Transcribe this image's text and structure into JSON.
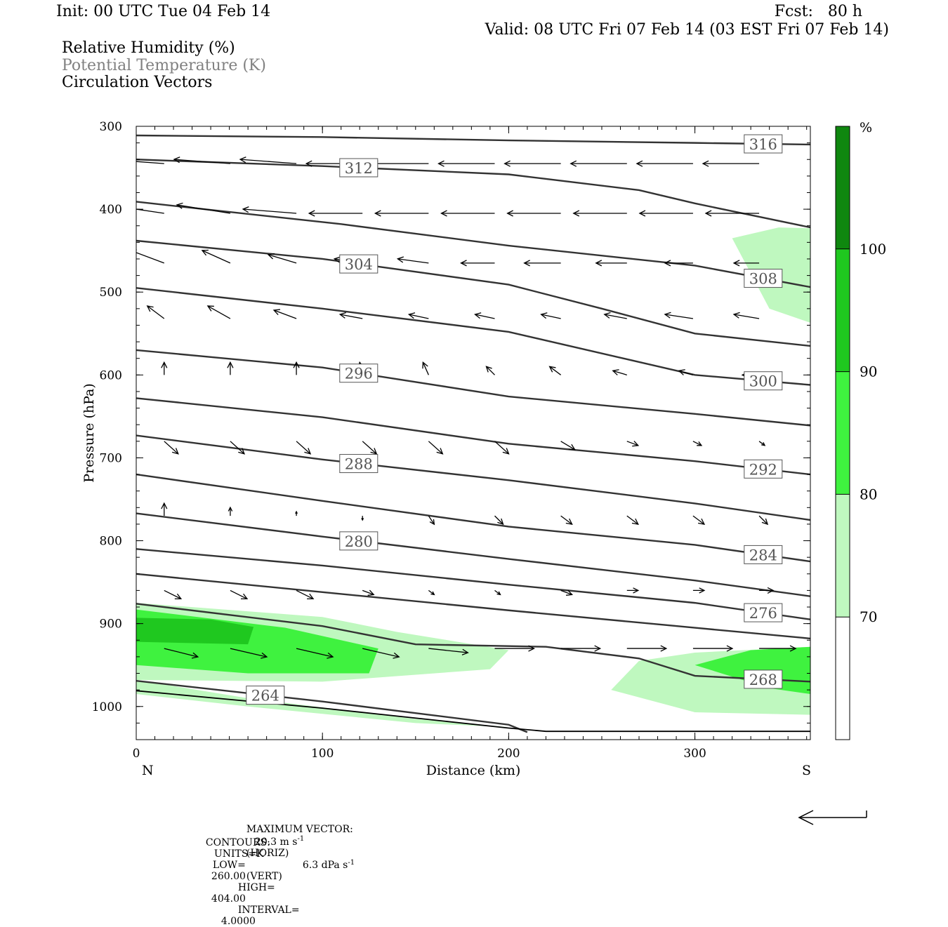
{
  "header": {
    "init": "Init: 00 UTC Tue 04 Feb 14",
    "fcst": "Fcst:   80 h",
    "valid": "Valid: 08 UTC Fri 07 Feb 14 (03 EST Fri 07 Feb 14)"
  },
  "legend": {
    "rh": "Relative Humidity (%)",
    "theta": "Potential Temperature (K)",
    "vectors": "Circulation Vectors"
  },
  "colors": {
    "fill_70": "#bff8bf",
    "fill_80": "#3ff23f",
    "fill_90": "#1fc81f",
    "fill_100": "#0f870f",
    "contour": "#333333",
    "theta_text": "#808080"
  },
  "chart_data": {
    "type": "cross-section",
    "xlabel": "Distance (km)",
    "ylabel": "Pressure (hPa)",
    "xlim": [
      0,
      362
    ],
    "ylim": [
      1040,
      300
    ],
    "x_ticks": [
      0,
      100,
      200,
      300
    ],
    "x_tick_labels": [
      "0",
      "100",
      "200",
      "300"
    ],
    "y_ticks": [
      300,
      400,
      500,
      600,
      700,
      800,
      900,
      1000
    ],
    "y_tick_labels": [
      "300",
      "400",
      "500",
      "600",
      "700",
      "800",
      "900",
      "1000"
    ],
    "x_endpoints": {
      "left": "N",
      "right": "S"
    },
    "colorbar": {
      "unit": "%",
      "levels": [
        70,
        80,
        90,
        100
      ],
      "labels": [
        "70",
        "80",
        "90",
        "100"
      ],
      "colors": [
        "#ffffff",
        "#bff8bf",
        "#3ff23f",
        "#1fc81f",
        "#0f870f"
      ]
    },
    "theta_contours": [
      {
        "level": 316,
        "label": "316",
        "points": [
          [
            0,
            311
          ],
          [
            100,
            313
          ],
          [
            200,
            317
          ],
          [
            300,
            320
          ],
          [
            362,
            322
          ]
        ]
      },
      {
        "level": 312,
        "label": "312",
        "points": [
          [
            0,
            340
          ],
          [
            100,
            348
          ],
          [
            200,
            358
          ],
          [
            270,
            377
          ],
          [
            300,
            393
          ],
          [
            362,
            422
          ]
        ]
      },
      {
        "level": 308,
        "label": "308",
        "points": [
          [
            0,
            391
          ],
          [
            110,
            418
          ],
          [
            200,
            444
          ],
          [
            300,
            468
          ],
          [
            362,
            494
          ]
        ]
      },
      {
        "level": 304,
        "label": "304",
        "points": [
          [
            0,
            438
          ],
          [
            100,
            460
          ],
          [
            200,
            491
          ],
          [
            250,
            520
          ],
          [
            300,
            550
          ],
          [
            362,
            565
          ]
        ]
      },
      {
        "level": 300,
        "label": "300",
        "points": [
          [
            0,
            495
          ],
          [
            100,
            520
          ],
          [
            200,
            548
          ],
          [
            300,
            600
          ],
          [
            362,
            612
          ]
        ]
      },
      {
        "level": 296,
        "label": "296",
        "points": [
          [
            0,
            570
          ],
          [
            100,
            591
          ],
          [
            200,
            626
          ],
          [
            300,
            647
          ],
          [
            362,
            661
          ]
        ]
      },
      {
        "level": 292,
        "label": "292",
        "points": [
          [
            0,
            628
          ],
          [
            100,
            651
          ],
          [
            200,
            683
          ],
          [
            300,
            704
          ],
          [
            362,
            720
          ]
        ]
      },
      {
        "level": 288,
        "label": "288",
        "points": [
          [
            0,
            673
          ],
          [
            100,
            702
          ],
          [
            200,
            727
          ],
          [
            300,
            755
          ],
          [
            362,
            775
          ]
        ]
      },
      {
        "level": 284,
        "label": "284",
        "points": [
          [
            0,
            720
          ],
          [
            100,
            752
          ],
          [
            200,
            783
          ],
          [
            300,
            805
          ],
          [
            362,
            825
          ]
        ]
      },
      {
        "level": 280,
        "label": "280",
        "points": [
          [
            0,
            767
          ],
          [
            100,
            795
          ],
          [
            200,
            822
          ],
          [
            300,
            848
          ],
          [
            362,
            867
          ]
        ]
      },
      {
        "level": 276,
        "label": "276",
        "points": [
          [
            0,
            810
          ],
          [
            100,
            830
          ],
          [
            200,
            853
          ],
          [
            300,
            875
          ],
          [
            362,
            895
          ]
        ]
      },
      {
        "level": 272,
        "label": "",
        "points": [
          [
            0,
            840
          ],
          [
            100,
            862
          ],
          [
            200,
            884
          ],
          [
            300,
            905
          ],
          [
            362,
            918
          ]
        ]
      },
      {
        "level": 268,
        "label": "268",
        "points": [
          [
            0,
            876
          ],
          [
            100,
            903
          ],
          [
            150,
            925
          ],
          [
            220,
            928
          ],
          [
            270,
            942
          ],
          [
            300,
            963
          ],
          [
            362,
            970
          ]
        ]
      },
      {
        "level": 264,
        "label": "264",
        "points": [
          [
            0,
            969
          ],
          [
            100,
            994
          ],
          [
            200,
            1022
          ],
          [
            210,
            1031
          ]
        ]
      }
    ],
    "terrain_line": [
      [
        0,
        981
      ],
      [
        100,
        1002
      ],
      [
        200,
        1026
      ],
      [
        220,
        1030
      ],
      [
        362,
        1030
      ]
    ],
    "rh_regions": [
      {
        "level": 70,
        "points": [
          [
            0,
            875
          ],
          [
            100,
            892
          ],
          [
            140,
            910
          ],
          [
            200,
            932
          ],
          [
            190,
            955
          ],
          [
            100,
            970
          ],
          [
            0,
            968
          ]
        ]
      },
      {
        "level": 80,
        "points": [
          [
            0,
            883
          ],
          [
            80,
            905
          ],
          [
            130,
            930
          ],
          [
            125,
            960
          ],
          [
            60,
            960
          ],
          [
            0,
            950
          ]
        ]
      },
      {
        "level": 90,
        "points": [
          [
            0,
            893
          ],
          [
            40,
            895
          ],
          [
            63,
            904
          ],
          [
            60,
            925
          ],
          [
            0,
            922
          ]
        ]
      },
      {
        "level": 70,
        "points": [
          [
            270,
            945
          ],
          [
            300,
            935
          ],
          [
            362,
            928
          ],
          [
            362,
            1010
          ],
          [
            300,
            1007
          ],
          [
            255,
            980
          ]
        ]
      },
      {
        "level": 80,
        "points": [
          [
            300,
            950
          ],
          [
            330,
            932
          ],
          [
            362,
            928
          ],
          [
            362,
            985
          ],
          [
            340,
            978
          ]
        ]
      },
      {
        "level": 70,
        "points": [
          [
            320,
            435
          ],
          [
            345,
            422
          ],
          [
            362,
            423
          ],
          [
            362,
            537
          ],
          [
            340,
            520
          ]
        ]
      },
      {
        "level": 70,
        "points": [
          [
            0,
            968
          ],
          [
            60,
            990
          ],
          [
            150,
            1015
          ],
          [
            200,
            1025
          ],
          [
            150,
            1020
          ],
          [
            60,
            1000
          ],
          [
            0,
            985
          ]
        ]
      }
    ],
    "vector_rows": [
      {
        "p": 345,
        "u": [
          -20,
          -20,
          -20,
          -20,
          -20,
          -20,
          -20,
          -20,
          -20,
          -20
        ],
        "w": [
          -1,
          -1,
          -1,
          0,
          0,
          0,
          0,
          0,
          0,
          0
        ]
      },
      {
        "p": 405,
        "u": [
          -20,
          -19,
          -19,
          -19,
          -19,
          -19,
          -19,
          -19,
          -19,
          -19
        ],
        "w": [
          -2,
          -2,
          -1,
          0,
          0,
          0,
          0,
          0,
          0,
          0
        ]
      },
      {
        "p": 465,
        "u": [
          -12,
          -10,
          -10,
          -10,
          -11,
          -12,
          -13,
          -11,
          -10,
          -9
        ],
        "w": [
          -3,
          -3,
          -2,
          -1,
          -1,
          0,
          0,
          0,
          0,
          0
        ]
      },
      {
        "p": 532,
        "u": [
          -6,
          -8,
          -8,
          -8,
          -7,
          -7,
          -7,
          -8,
          -10,
          -9
        ],
        "w": [
          -3,
          -3,
          -2,
          -1,
          -1,
          -1,
          -1,
          -1,
          -1,
          -1
        ]
      },
      {
        "p": 600,
        "u": [
          0,
          0,
          0,
          -1,
          -2,
          -3,
          -4,
          -5,
          -5,
          -6
        ],
        "w": [
          -3,
          -3,
          -3,
          -3,
          -3,
          -2,
          -2,
          -1,
          -1,
          0
        ]
      },
      {
        "p": 680,
        "u": [
          5,
          5,
          5,
          5,
          5,
          5,
          5,
          4,
          3,
          2
        ],
        "w": [
          3,
          3,
          3,
          3,
          3,
          3,
          2,
          1,
          1,
          1
        ]
      },
      {
        "p": 770,
        "u": [
          0,
          0,
          0,
          0,
          2,
          3,
          4,
          4,
          4,
          3
        ],
        "w": [
          -3,
          -2,
          -1,
          1,
          2,
          2,
          2,
          2,
          2,
          2
        ]
      },
      {
        "p": 860,
        "u": [
          6,
          6,
          6,
          4,
          2,
          2,
          4,
          4,
          4,
          5
        ],
        "w": [
          2,
          2,
          2,
          1,
          1,
          1,
          1,
          0,
          0,
          0
        ]
      },
      {
        "p": 930,
        "u": [
          12,
          13,
          13,
          13,
          14,
          14,
          14,
          14,
          14,
          13
        ],
        "w": [
          2,
          2,
          2,
          2,
          1,
          0,
          0,
          0,
          0,
          0
        ]
      }
    ]
  },
  "footer": {
    "max_vector_label": "MAXIMUM VECTOR:",
    "max_vector_horiz": "20.3 m s",
    "horiz_exp": "-1",
    "horiz_tag": "(HORIZ)",
    "max_vector_vert": "6.3 dPa s",
    "vert_exp": "-1",
    "vert_tag": "(VERT)",
    "contours_label": "CONTOURS:",
    "units": "UNITS=K",
    "low_label": "LOW=",
    "low": "260.00",
    "high_label": "HIGH=",
    "high": "404.00",
    "interval_label": "INTERVAL=",
    "interval": "4.0000"
  }
}
